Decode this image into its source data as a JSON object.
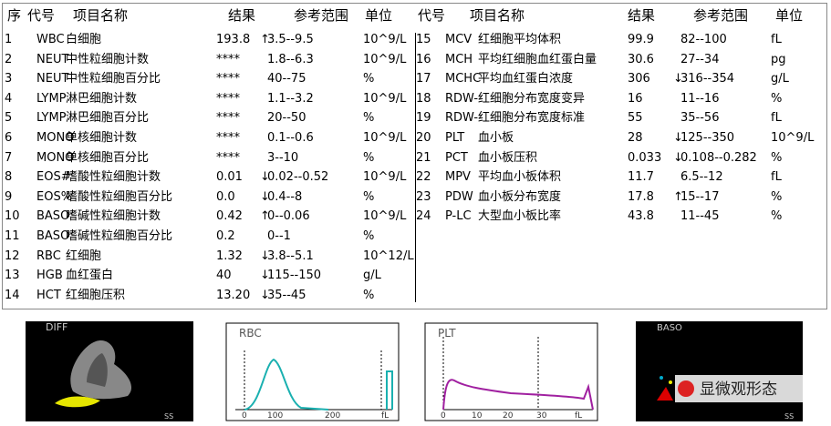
{
  "header": {
    "left": {
      "no": "序",
      "code": "代号",
      "name": "项目名称",
      "result": "结果",
      "range": "参考范围",
      "unit": "单位"
    },
    "right": {
      "code": "代号",
      "name": "项目名称",
      "result": "结果",
      "range": "参考范围",
      "unit": "单位"
    }
  },
  "table": {
    "left": [
      {
        "no": "1",
        "code": "WBC",
        "name": "白细胞",
        "result": "193.8",
        "flag": "↑",
        "range": "3.5--9.5",
        "unit": "10^9/L"
      },
      {
        "no": "2",
        "code": "NEUT",
        "name": "中性粒细胞计数",
        "result": "****",
        "range": "1.8--6.3",
        "unit": "10^9/L"
      },
      {
        "no": "3",
        "code": "NEUT",
        "name": "中性粒细胞百分比",
        "result": "****",
        "range": "40--75",
        "unit": "%"
      },
      {
        "no": "4",
        "code": "LYMP",
        "name": "淋巴细胞计数",
        "result": "****",
        "range": "1.1--3.2",
        "unit": "10^9/L"
      },
      {
        "no": "5",
        "code": "LYMP",
        "name": "淋巴细胞百分比",
        "result": "****",
        "range": "20--50",
        "unit": "%"
      },
      {
        "no": "6",
        "code": "MONO",
        "name": "单核细胞计数",
        "result": "****",
        "range": "0.1--0.6",
        "unit": "10^9/L"
      },
      {
        "no": "7",
        "code": "MONO",
        "name": "单核细胞百分比",
        "result": "****",
        "range": "3--10",
        "unit": "%"
      },
      {
        "no": "8",
        "code": "EOS#",
        "name": "嗜酸性粒细胞计数",
        "result": "0.01",
        "flag": "↓",
        "range": "0.02--0.52",
        "unit": "10^9/L"
      },
      {
        "no": "9",
        "code": "EOS%",
        "name": "嗜酸性粒细胞百分比",
        "result": "0.0",
        "flag": "↓",
        "range": "0.4--8",
        "unit": "%"
      },
      {
        "no": "10",
        "code": "BASO",
        "name": "嗜碱性粒细胞计数",
        "result": "0.42",
        "flag": "↑",
        "range": "0--0.06",
        "unit": "10^9/L"
      },
      {
        "no": "11",
        "code": "BASO",
        "name": "嗜碱性粒细胞百分比",
        "result": "0.2",
        "range": "0--1",
        "unit": "%"
      },
      {
        "no": "12",
        "code": "RBC",
        "name": "红细胞",
        "result": "1.32",
        "flag": "↓",
        "range": "3.8--5.1",
        "unit": "10^12/L"
      },
      {
        "no": "13",
        "code": "HGB",
        "name": "血红蛋白",
        "result": "40",
        "flag": "↓",
        "range": "115--150",
        "unit": "g/L"
      },
      {
        "no": "14",
        "code": "HCT",
        "name": "红细胞压积",
        "result": "13.20",
        "flag": "↓",
        "range": "35--45",
        "unit": "%"
      }
    ],
    "right": [
      {
        "no": "15",
        "code": "MCV",
        "name": "红细胞平均体积",
        "result": "99.9",
        "range": "82--100",
        "unit": "fL"
      },
      {
        "no": "16",
        "code": "MCH",
        "name": "平均红细胞血红蛋白量",
        "result": "30.6",
        "range": "27--34",
        "unit": "pg"
      },
      {
        "no": "17",
        "code": "MCHC",
        "name": "平均血红蛋白浓度",
        "result": "306",
        "flag": "↓",
        "range": "316--354",
        "unit": "g/L"
      },
      {
        "no": "18",
        "code": "RDW-",
        "name": "红细胞分布宽度变异",
        "result": "16",
        "range": "11--16",
        "unit": "%"
      },
      {
        "no": "19",
        "code": "RDW-",
        "name": "红细胞分布宽度标准",
        "result": "55",
        "range": "35--56",
        "unit": "fL"
      },
      {
        "no": "20",
        "code": "PLT",
        "name": "血小板",
        "result": "28",
        "flag": "↓",
        "range": "125--350",
        "unit": "10^9/L"
      },
      {
        "no": "21",
        "code": "PCT",
        "name": "血小板压积",
        "result": "0.033",
        "flag": "↓",
        "range": "0.108--0.282",
        "unit": "%"
      },
      {
        "no": "22",
        "code": "MPV",
        "name": "平均血小板体积",
        "result": "11.7",
        "range": "6.5--12",
        "unit": "fL"
      },
      {
        "no": "23",
        "code": "PDW",
        "name": "血小板分布宽度",
        "result": "17.8",
        "flag": "↑",
        "range": "15--17",
        "unit": "%"
      },
      {
        "no": "24",
        "code": "P-LC",
        "name": "大型血小板比率",
        "result": "43.8",
        "range": "11--45",
        "unit": "%"
      }
    ]
  },
  "plots": {
    "diff": {
      "title": "DIFF",
      "axis": "SS"
    },
    "rbc": {
      "title": "RBC",
      "ticks": [
        "0",
        "100",
        "200",
        "fL"
      ]
    },
    "plt": {
      "title": "PLT",
      "ticks": [
        "0",
        "10",
        "20",
        "30",
        "fL"
      ]
    },
    "baso": {
      "title": "BASO",
      "axis": "SS"
    }
  },
  "watermark": "显微观形态"
}
